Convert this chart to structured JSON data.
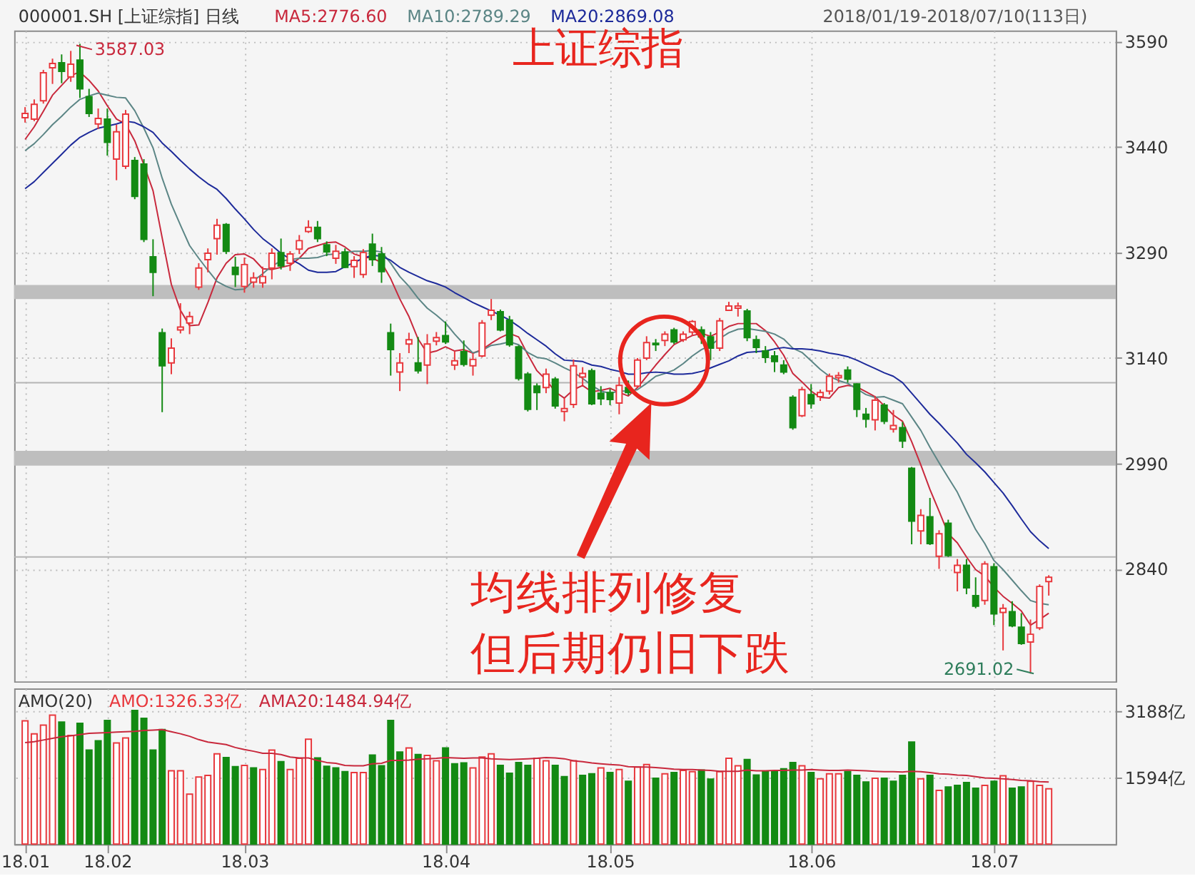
{
  "chart_data": [
    {
      "type": "candlestick",
      "title": "上证综指",
      "subtitle": "000001.SH [上证综指] 日线",
      "categories": [
        "18.01",
        null,
        null,
        null,
        null,
        null,
        null,
        null,
        null,
        "18.02",
        null,
        null,
        null,
        null,
        null,
        null,
        null,
        null,
        null,
        null,
        null,
        null,
        null,
        null,
        "18.03",
        null,
        null,
        null,
        null,
        null,
        null,
        null,
        null,
        null,
        null,
        null,
        null,
        null,
        null,
        null,
        null,
        null,
        null,
        null,
        null,
        null,
        "18.04",
        null,
        null,
        null,
        null,
        null,
        null,
        null,
        null,
        null,
        null,
        null,
        null,
        null,
        null,
        null,
        null,
        null,
        "18.05",
        null,
        null,
        null,
        null,
        null,
        null,
        null,
        null,
        null,
        null,
        null,
        null,
        null,
        null,
        null,
        null,
        null,
        null,
        null,
        null,
        null,
        "18.06",
        null,
        null,
        null,
        null,
        null,
        null,
        null,
        null,
        null,
        null,
        null,
        null,
        null,
        null,
        null,
        null,
        null,
        null,
        null,
        "18.07",
        null,
        null,
        null,
        null,
        null,
        null
      ],
      "ohlc": [
        [
          3482,
          3497,
          3475,
          3488
        ],
        [
          3480,
          3508,
          3477,
          3501
        ],
        [
          3506,
          3550,
          3502,
          3546
        ],
        [
          3553,
          3566,
          3530,
          3559
        ],
        [
          3560,
          3572,
          3531,
          3548
        ],
        [
          3540,
          3577,
          3533,
          3558
        ],
        [
          3564,
          3587.03,
          3510,
          3523
        ],
        [
          3512,
          3523,
          3483,
          3488
        ],
        [
          3473,
          3495,
          3466,
          3481
        ],
        [
          3480,
          3495,
          3428,
          3447
        ],
        [
          3423,
          3472,
          3393,
          3462
        ],
        [
          3413,
          3493,
          3409,
          3487
        ],
        [
          3421,
          3426,
          3366,
          3370
        ],
        [
          3416,
          3423,
          3305,
          3309
        ],
        [
          3284,
          3309,
          3228,
          3262
        ],
        [
          3176,
          3182,
          3063,
          3129
        ],
        [
          3133,
          3168,
          3117,
          3154
        ],
        [
          3180,
          3218,
          3175,
          3184
        ],
        [
          3190,
          3206,
          3174,
          3199
        ],
        [
          3241,
          3275,
          3237,
          3268
        ],
        [
          3280,
          3296,
          3262,
          3289
        ],
        [
          3310,
          3338,
          3287,
          3329
        ],
        [
          3330,
          3332,
          3288,
          3292
        ],
        [
          3269,
          3284,
          3241,
          3259
        ],
        [
          3242,
          3283,
          3233,
          3273
        ],
        [
          3248,
          3262,
          3240,
          3254
        ],
        [
          3247,
          3270,
          3240,
          3256
        ],
        [
          3268,
          3296,
          3252,
          3289
        ],
        [
          3290,
          3310,
          3266,
          3271
        ],
        [
          3275,
          3292,
          3264,
          3288
        ],
        [
          3295,
          3315,
          3288,
          3307
        ],
        [
          3320,
          3336,
          3318,
          3326
        ],
        [
          3326,
          3335,
          3305,
          3310
        ],
        [
          3301,
          3306,
          3285,
          3291
        ],
        [
          3282,
          3301,
          3274,
          3292
        ],
        [
          3291,
          3296,
          3268,
          3269
        ],
        [
          3270,
          3285,
          3254,
          3279
        ],
        [
          3259,
          3295,
          3254,
          3290
        ],
        [
          3302,
          3317,
          3271,
          3280
        ],
        [
          3288,
          3298,
          3247,
          3263
        ],
        [
          3176,
          3189,
          3115,
          3152
        ],
        [
          3120,
          3147,
          3093,
          3133
        ],
        [
          3160,
          3176,
          3147,
          3166
        ],
        [
          3133,
          3170,
          3118,
          3122
        ],
        [
          3130,
          3174,
          3103,
          3160
        ],
        [
          3164,
          3177,
          3158,
          3169
        ],
        [
          3172,
          3192,
          3160,
          3163
        ],
        [
          3130,
          3150,
          3123,
          3136
        ],
        [
          3149,
          3165,
          3128,
          3131
        ],
        [
          3129,
          3147,
          3115,
          3138
        ],
        [
          3143,
          3194,
          3141,
          3190
        ],
        [
          3201,
          3224,
          3194,
          3208
        ],
        [
          3206,
          3209,
          3178,
          3180
        ],
        [
          3194,
          3200,
          3156,
          3159
        ],
        [
          3156,
          3158,
          3108,
          3111
        ],
        [
          3117,
          3120,
          3064,
          3067
        ],
        [
          3100,
          3104,
          3066,
          3091
        ],
        [
          3098,
          3125,
          3090,
          3117
        ],
        [
          3110,
          3113,
          3068,
          3072
        ],
        [
          3064,
          3083,
          3050,
          3068
        ],
        [
          3074,
          3138,
          3069,
          3129
        ],
        [
          3113,
          3127,
          3101,
          3118
        ],
        [
          3122,
          3125,
          3073,
          3075
        ],
        [
          3090,
          3100,
          3073,
          3082
        ],
        [
          3091,
          3096,
          3073,
          3081
        ],
        [
          3076,
          3113,
          3060,
          3101
        ],
        [
          3098,
          3108,
          3087,
          3091
        ],
        [
          3100,
          3140,
          3098,
          3137
        ],
        [
          3140,
          3171,
          3137,
          3162
        ],
        [
          3161,
          3167,
          3150,
          3159
        ],
        [
          3165,
          3178,
          3157,
          3174
        ],
        [
          3180,
          3183,
          3160,
          3163
        ],
        [
          3166,
          3178,
          3163,
          3174
        ],
        [
          3177,
          3194,
          3172,
          3192
        ],
        [
          3180,
          3185,
          3160,
          3170
        ],
        [
          3170,
          3177,
          3137,
          3154
        ],
        [
          3154,
          3197,
          3150,
          3193
        ],
        [
          3208,
          3220,
          3207,
          3214
        ],
        [
          3211,
          3219,
          3199,
          3214
        ],
        [
          3207,
          3210,
          3164,
          3169
        ],
        [
          3166,
          3172,
          3147,
          3155
        ],
        [
          3150,
          3157,
          3133,
          3141
        ],
        [
          3143,
          3150,
          3120,
          3135
        ],
        [
          3130,
          3137,
          3117,
          3120
        ],
        [
          3084,
          3087,
          3038,
          3041
        ],
        [
          3058,
          3099,
          3056,
          3095
        ],
        [
          3088,
          3103,
          3068,
          3075
        ],
        [
          3085,
          3095,
          3079,
          3091
        ],
        [
          3093,
          3118,
          3088,
          3114
        ],
        [
          3112,
          3120,
          3105,
          3115
        ],
        [
          3123,
          3128,
          3105,
          3110
        ],
        [
          3103,
          3104,
          3056,
          3067
        ],
        [
          3060,
          3069,
          3041,
          3053
        ],
        [
          3052,
          3086,
          3037,
          3080
        ],
        [
          3073,
          3076,
          3046,
          3050
        ],
        [
          3039,
          3066,
          3034,
          3044
        ],
        [
          3041,
          3049,
          3012,
          3022
        ],
        [
          2983,
          2985,
          2875,
          2908
        ],
        [
          2894,
          2925,
          2875,
          2916
        ],
        [
          2914,
          2941,
          2874,
          2876
        ],
        [
          2858,
          2895,
          2840,
          2890
        ],
        [
          2905,
          2910,
          2857,
          2859
        ],
        [
          2835,
          2854,
          2808,
          2845
        ],
        [
          2845,
          2854,
          2804,
          2813
        ],
        [
          2802,
          2828,
          2784,
          2787
        ],
        [
          2795,
          2851,
          2789,
          2847
        ],
        [
          2843,
          2848,
          2760,
          2776
        ],
        [
          2778,
          2790,
          2724,
          2784
        ],
        [
          2779,
          2794,
          2757,
          2759
        ],
        [
          2757,
          2777,
          2732,
          2734
        ],
        [
          2736,
          2768,
          2691.02,
          2747
        ],
        [
          2756,
          2818,
          2753,
          2815
        ],
        [
          2822,
          2831,
          2802,
          2828
        ]
      ],
      "colors": [
        "#e8383d",
        "#e8383d",
        "#e8383d",
        "#e8383d",
        "#138a13",
        "#e8383d",
        "#138a13",
        "#138a13",
        "#e8383d",
        "#138a13",
        "#e8383d",
        "#e8383d",
        "#138a13",
        "#138a13",
        "#138a13",
        "#138a13",
        "#e8383d",
        "#e8383d",
        "#e8383d",
        "#e8383d",
        "#e8383d",
        "#e8383d",
        "#138a13",
        "#138a13",
        "#e8383d",
        "#e8383d",
        "#e8383d",
        "#e8383d",
        "#138a13",
        "#e8383d",
        "#e8383d",
        "#e8383d",
        "#138a13",
        "#138a13",
        "#e8383d",
        "#138a13",
        "#e8383d",
        "#e8383d",
        "#138a13",
        "#138a13",
        "#138a13",
        "#e8383d",
        "#e8383d",
        "#138a13",
        "#e8383d",
        "#e8383d",
        "#138a13",
        "#e8383d",
        "#138a13",
        "#e8383d",
        "#e8383d",
        "#e8383d",
        "#138a13",
        "#138a13",
        "#138a13",
        "#138a13",
        "#138a13",
        "#e8383d",
        "#138a13",
        "#e8383d",
        "#e8383d",
        "#e8383d",
        "#138a13",
        "#138a13",
        "#138a13",
        "#e8383d",
        "#138a13",
        "#e8383d",
        "#e8383d",
        "#138a13",
        "#e8383d",
        "#138a13",
        "#e8383d",
        "#e8383d",
        "#138a13",
        "#138a13",
        "#e8383d",
        "#e8383d",
        "#e8383d",
        "#138a13",
        "#138a13",
        "#138a13",
        "#138a13",
        "#138a13",
        "#138a13",
        "#e8383d",
        "#138a13",
        "#e8383d",
        "#e8383d",
        "#e8383d",
        "#138a13",
        "#138a13",
        "#138a13",
        "#e8383d",
        "#138a13",
        "#e8383d",
        "#138a13",
        "#138a13",
        "#e8383d",
        "#138a13",
        "#e8383d",
        "#138a13",
        "#e8383d",
        "#138a13",
        "#138a13",
        "#e8383d",
        "#138a13",
        "#e8383d",
        "#138a13",
        "#138a13",
        "#e8383d",
        "#e8383d",
        "#e8383d"
      ],
      "series": [
        {
          "name": "MA5:2776.60",
          "type": "line",
          "color": "#c8283c",
          "values": [
            3451,
            3469,
            3491,
            3514,
            3528,
            3542,
            3547,
            3535,
            3520,
            3499,
            3480,
            3473,
            3449,
            3415,
            3378,
            3311,
            3245,
            3208,
            3186,
            3187,
            3219,
            3254,
            3275,
            3287,
            3288,
            3281,
            3267,
            3266,
            3269,
            3272,
            3282,
            3296,
            3300,
            3304,
            3305,
            3298,
            3288,
            3284,
            3282,
            3276,
            3253,
            3224,
            3199,
            3167,
            3147,
            3150,
            3156,
            3150,
            3152,
            3147,
            3152,
            3161,
            3169,
            3175,
            3170,
            3145,
            3122,
            3109,
            3092,
            3083,
            3095,
            3101,
            3092,
            3094,
            3097,
            3091,
            3086,
            3098,
            3114,
            3130,
            3145,
            3159,
            3166,
            3172,
            3175,
            3171,
            3177,
            3185,
            3189,
            3189,
            3189,
            3179,
            3163,
            3144,
            3118,
            3106,
            3093,
            3084,
            3083,
            3098,
            3101,
            3099,
            3092,
            3085,
            3072,
            3059,
            3050,
            3021,
            2988,
            2953,
            2922,
            2890,
            2877,
            2857,
            2839,
            2830,
            2814,
            2801,
            2791,
            2780,
            2760,
            2768,
            2777
          ]
        },
        {
          "name": "MA10:2789.29",
          "type": "line",
          "color": "#5b8585",
          "values": [
            3435,
            3445,
            3458,
            3472,
            3484,
            3497,
            3508,
            3513,
            3517,
            3514,
            3511,
            3510,
            3492,
            3467,
            3439,
            3396,
            3359,
            3329,
            3300,
            3282,
            3265,
            3249,
            3242,
            3237,
            3238,
            3250,
            3260,
            3271,
            3278,
            3280,
            3282,
            3282,
            3283,
            3287,
            3288,
            3290,
            3292,
            3292,
            3293,
            3291,
            3275,
            3256,
            3242,
            3225,
            3211,
            3201,
            3190,
            3174,
            3160,
            3147,
            3151,
            3158,
            3160,
            3163,
            3159,
            3148,
            3141,
            3139,
            3133,
            3126,
            3120,
            3111,
            3101,
            3093,
            3090,
            3093,
            3093,
            3095,
            3104,
            3114,
            3118,
            3123,
            3132,
            3143,
            3152,
            3158,
            3168,
            3176,
            3181,
            3182,
            3180,
            3178,
            3174,
            3167,
            3154,
            3148,
            3136,
            3124,
            3114,
            3108,
            3104,
            3096,
            3088,
            3084,
            3085,
            3080,
            3075,
            3056,
            3037,
            3013,
            2991,
            2970,
            2949,
            2922,
            2896,
            2876,
            2852,
            2839,
            2824,
            2809,
            2795,
            2791,
            2789
          ]
        },
        {
          "name": "MA20:2869.08",
          "type": "line",
          "color": "#1d2a9a",
          "values": [
            3381,
            3391,
            3404,
            3417,
            3430,
            3443,
            3454,
            3461,
            3467,
            3470,
            3473,
            3477,
            3475,
            3469,
            3461,
            3446,
            3434,
            3421,
            3409,
            3398,
            3388,
            3380,
            3367,
            3352,
            3338,
            3323,
            3310,
            3300,
            3289,
            3281,
            3274,
            3265,
            3262,
            3262,
            3263,
            3270,
            3276,
            3282,
            3286,
            3285,
            3279,
            3269,
            3262,
            3256,
            3250,
            3246,
            3241,
            3233,
            3226,
            3219,
            3213,
            3207,
            3201,
            3194,
            3185,
            3175,
            3166,
            3157,
            3146,
            3137,
            3136,
            3135,
            3130,
            3128,
            3124,
            3121,
            3117,
            3117,
            3119,
            3120,
            3119,
            3117,
            3117,
            3118,
            3121,
            3126,
            3131,
            3136,
            3143,
            3148,
            3149,
            3150,
            3153,
            3155,
            3153,
            3153,
            3152,
            3150,
            3147,
            3145,
            3142,
            3137,
            3131,
            3125,
            3119,
            3114,
            3105,
            3090,
            3075,
            3060,
            3047,
            3033,
            3019,
            3003,
            2991,
            2978,
            2963,
            2948,
            2930,
            2911,
            2893,
            2880,
            2869
          ]
        }
      ],
      "ylim": [
        2680,
        3606
      ],
      "yticks": [
        2840,
        2990,
        3140,
        3290,
        3440,
        3590
      ],
      "grid": true,
      "legend": "top",
      "tick_labels": "y",
      "bands": [
        {
          "axis": "y",
          "from": 3224,
          "to": 3244,
          "color": "#bebebe"
        },
        {
          "axis": "y",
          "from": 2987,
          "to": 3008,
          "color": "#bebebe"
        }
      ],
      "ref_lines": [
        {
          "axis": "y",
          "value": 3105,
          "color": "#b4b4b4"
        },
        {
          "axis": "y",
          "value": 2857,
          "color": "#b4b4b4"
        }
      ],
      "annotations": [
        "2018/01/19-2018/07/10(113日)",
        "3587.03",
        "2691.02",
        "均线排列修复",
        "但后期仍旧下跌"
      ]
    },
    {
      "type": "bar",
      "subtitle": "AMO(20)",
      "categories": [
        "18.01",
        null,
        null,
        null,
        null,
        null,
        null,
        null,
        null,
        "18.02",
        null,
        null,
        null,
        null,
        null,
        null,
        null,
        null,
        null,
        null,
        null,
        null,
        null,
        null,
        "18.03",
        null,
        null,
        null,
        null,
        null,
        null,
        null,
        null,
        null,
        null,
        null,
        null,
        null,
        null,
        null,
        null,
        null,
        null,
        null,
        null,
        null,
        "18.04",
        null,
        null,
        null,
        null,
        null,
        null,
        null,
        null,
        null,
        null,
        null,
        null,
        null,
        null,
        null,
        null,
        null,
        "18.05",
        null,
        null,
        null,
        null,
        null,
        null,
        null,
        null,
        null,
        null,
        null,
        null,
        null,
        null,
        null,
        null,
        null,
        null,
        null,
        null,
        null,
        "18.06",
        null,
        null,
        null,
        null,
        null,
        null,
        null,
        null,
        null,
        null,
        null,
        null,
        null,
        null,
        null,
        null,
        null,
        null,
        null,
        "18.07",
        null,
        null,
        null,
        null,
        null,
        null
      ],
      "series": [
        {
          "name": "AMO:1326.33亿",
          "type": "bar",
          "values": [
            2960,
            2650,
            2860,
            3100,
            2930,
            2610,
            2900,
            2260,
            2480,
            2970,
            2430,
            2550,
            3210,
            3020,
            2260,
            2750,
            1760,
            1760,
            1200,
            1610,
            1650,
            2170,
            2080,
            1860,
            1890,
            1830,
            1790,
            2260,
            1980,
            1790,
            2060,
            2520,
            2070,
            1870,
            1830,
            1740,
            1720,
            1720,
            2140,
            1880,
            2970,
            2210,
            2310,
            2150,
            2130,
            2000,
            2310,
            1930,
            1950,
            1830,
            2090,
            2170,
            1890,
            1700,
            1960,
            1890,
            2060,
            2000,
            1890,
            1620,
            2000,
            1650,
            1690,
            1830,
            1720,
            1790,
            1510,
            1850,
            1910,
            1580,
            1690,
            1720,
            1770,
            1740,
            1780,
            1560,
            1740,
            2060,
            1880,
            2030,
            1660,
            1740,
            1740,
            1810,
            1960,
            1880,
            1720,
            1570,
            1690,
            1690,
            1740,
            1650,
            1490,
            1580,
            1580,
            1510,
            1650,
            2450,
            1570,
            1650,
            1290,
            1370,
            1410,
            1480,
            1340,
            1410,
            1510,
            1640,
            1340,
            1370,
            1510,
            1410,
            1330
          ],
          "colors": [
            "#e8383d",
            "#e8383d",
            "#e8383d",
            "#e8383d",
            "#138a13",
            "#e8383d",
            "#138a13",
            "#138a13",
            "#138a13",
            "#138a13",
            "#e8383d",
            "#e8383d",
            "#138a13",
            "#138a13",
            "#138a13",
            "#138a13",
            "#e8383d",
            "#e8383d",
            "#e8383d",
            "#e8383d",
            "#e8383d",
            "#e8383d",
            "#138a13",
            "#138a13",
            "#e8383d",
            "#138a13",
            "#e8383d",
            "#e8383d",
            "#138a13",
            "#e8383d",
            "#e8383d",
            "#e8383d",
            "#138a13",
            "#138a13",
            "#138a13",
            "#138a13",
            "#e8383d",
            "#e8383d",
            "#138a13",
            "#138a13",
            "#138a13",
            "#138a13",
            "#e8383d",
            "#138a13",
            "#e8383d",
            "#e8383d",
            "#138a13",
            "#138a13",
            "#138a13",
            "#e8383d",
            "#e8383d",
            "#e8383d",
            "#138a13",
            "#138a13",
            "#138a13",
            "#138a13",
            "#e8383d",
            "#e8383d",
            "#138a13",
            "#138a13",
            "#e8383d",
            "#138a13",
            "#138a13",
            "#e8383d",
            "#138a13",
            "#e8383d",
            "#138a13",
            "#e8383d",
            "#e8383d",
            "#138a13",
            "#e8383d",
            "#138a13",
            "#e8383d",
            "#e8383d",
            "#138a13",
            "#138a13",
            "#e8383d",
            "#e8383d",
            "#e8383d",
            "#138a13",
            "#138a13",
            "#138a13",
            "#138a13",
            "#138a13",
            "#138a13",
            "#e8383d",
            "#138a13",
            "#e8383d",
            "#e8383d",
            "#e8383d",
            "#138a13",
            "#138a13",
            "#138a13",
            "#e8383d",
            "#138a13",
            "#138a13",
            "#138a13",
            "#138a13",
            "#e8383d",
            "#138a13",
            "#e8383d",
            "#138a13",
            "#138a13",
            "#138a13",
            "#138a13",
            "#e8383d",
            "#138a13",
            "#e8383d",
            "#138a13",
            "#138a13",
            "#e8383d",
            "#e8383d",
            "#e8383d"
          ]
        },
        {
          "name": "AMA20:1484.94亿",
          "type": "line",
          "color": "#c8283c",
          "values": [
            2440,
            2460,
            2500,
            2540,
            2580,
            2600,
            2630,
            2660,
            2670,
            2680,
            2690,
            2700,
            2710,
            2730,
            2740,
            2750,
            2700,
            2650,
            2590,
            2510,
            2450,
            2420,
            2390,
            2320,
            2270,
            2230,
            2180,
            2180,
            2150,
            2090,
            2070,
            2070,
            2010,
            1960,
            1940,
            1890,
            1880,
            1880,
            1930,
            1940,
            2010,
            2010,
            2020,
            2040,
            2050,
            2060,
            2080,
            2070,
            2060,
            2070,
            2070,
            2050,
            2040,
            2030,
            2040,
            2050,
            2060,
            2080,
            2070,
            2050,
            2000,
            1980,
            1950,
            1930,
            1910,
            1900,
            1860,
            1850,
            1850,
            1840,
            1820,
            1800,
            1790,
            1790,
            1780,
            1770,
            1750,
            1750,
            1750,
            1780,
            1760,
            1760,
            1770,
            1770,
            1780,
            1780,
            1790,
            1780,
            1770,
            1770,
            1780,
            1770,
            1760,
            1750,
            1740,
            1740,
            1730,
            1750,
            1740,
            1720,
            1690,
            1680,
            1660,
            1650,
            1620,
            1590,
            1580,
            1570,
            1550,
            1530,
            1520,
            1500,
            1490
          ]
        }
      ],
      "ylim": [
        0,
        3740
      ],
      "yticks": [
        {
          "value": 1594,
          "label": "1594亿"
        },
        {
          "value": 3188,
          "label": "3188亿"
        }
      ],
      "grid": true,
      "legend": "top left"
    }
  ]
}
